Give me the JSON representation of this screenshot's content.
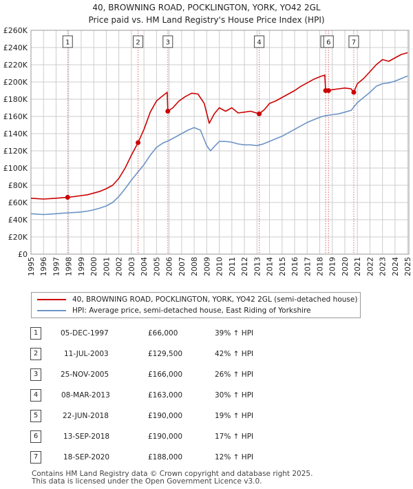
{
  "title_line1": "40, BROWNING ROAD, POCKLINGTON, YORK, YO42 2GL",
  "title_line2": "Price paid vs. HM Land Registry's House Price Index (HPI)",
  "colors": {
    "price_paid": "#cc0000",
    "hpi": "#6b93c7",
    "grid": "#cccccc",
    "marker_line": "#e06060"
  },
  "chart_data": {
    "type": "line",
    "ylim": [
      0,
      260000
    ],
    "xlim": [
      1995,
      2025.1
    ],
    "y_ticks": [
      0,
      20000,
      40000,
      60000,
      80000,
      100000,
      120000,
      140000,
      160000,
      180000,
      200000,
      220000,
      240000,
      260000
    ],
    "y_tick_labels": [
      "£0",
      "£20K",
      "£40K",
      "£60K",
      "£80K",
      "£100K",
      "£120K",
      "£140K",
      "£160K",
      "£180K",
      "£200K",
      "£220K",
      "£240K",
      "£260K"
    ],
    "x_ticks": [
      1995,
      1996,
      1997,
      1998,
      1999,
      2000,
      2001,
      2002,
      2003,
      2004,
      2005,
      2006,
      2007,
      2008,
      2009,
      2010,
      2011,
      2012,
      2013,
      2014,
      2015,
      2016,
      2017,
      2018,
      2019,
      2020,
      2021,
      2022,
      2023,
      2024,
      2025
    ],
    "x_tick_labels": [
      "1995",
      "1996",
      "1997",
      "1998",
      "1999",
      "2000",
      "2001",
      "2002",
      "2003",
      "2004",
      "2005",
      "2006",
      "2007",
      "2008",
      "2009",
      "2010",
      "2011",
      "2012",
      "2013",
      "2014",
      "2015",
      "2016",
      "2017",
      "2018",
      "2019",
      "2020",
      "2021",
      "2022",
      "2023",
      "2024",
      "2025"
    ],
    "grid": true,
    "series": [
      {
        "name": "40, BROWNING ROAD, POCKLINGTON, YORK, YO42 2GL (semi-detached house)",
        "color": "#cc0000",
        "points": [
          [
            1995.0,
            65000
          ],
          [
            1995.5,
            64500
          ],
          [
            1996.0,
            64000
          ],
          [
            1996.5,
            64500
          ],
          [
            1997.0,
            65000
          ],
          [
            1997.5,
            65500
          ],
          [
            1997.92,
            66000
          ],
          [
            1998.5,
            67000
          ],
          [
            1999.0,
            68000
          ],
          [
            1999.5,
            69000
          ],
          [
            2000.0,
            71000
          ],
          [
            2000.5,
            73000
          ],
          [
            2001.0,
            76000
          ],
          [
            2001.5,
            80000
          ],
          [
            2002.0,
            88000
          ],
          [
            2002.5,
            100000
          ],
          [
            2003.0,
            115000
          ],
          [
            2003.53,
            129500
          ],
          [
            2004.0,
            145000
          ],
          [
            2004.5,
            165000
          ],
          [
            2005.0,
            178000
          ],
          [
            2005.5,
            184000
          ],
          [
            2005.85,
            188000
          ],
          [
            2005.9,
            166000
          ],
          [
            2006.3,
            170000
          ],
          [
            2006.8,
            178000
          ],
          [
            2007.3,
            183000
          ],
          [
            2007.8,
            187000
          ],
          [
            2008.3,
            186000
          ],
          [
            2008.8,
            175000
          ],
          [
            2009.2,
            152000
          ],
          [
            2009.6,
            163000
          ],
          [
            2010.0,
            170000
          ],
          [
            2010.5,
            166000
          ],
          [
            2011.0,
            170000
          ],
          [
            2011.5,
            164000
          ],
          [
            2012.0,
            165000
          ],
          [
            2012.5,
            166000
          ],
          [
            2013.18,
            163000
          ],
          [
            2013.6,
            168000
          ],
          [
            2014.0,
            175000
          ],
          [
            2014.5,
            178000
          ],
          [
            2015.0,
            182000
          ],
          [
            2015.5,
            186000
          ],
          [
            2016.0,
            190000
          ],
          [
            2016.5,
            195000
          ],
          [
            2017.0,
            199000
          ],
          [
            2017.5,
            203000
          ],
          [
            2018.0,
            206000
          ],
          [
            2018.4,
            208000
          ],
          [
            2018.47,
            190000
          ],
          [
            2018.7,
            190000
          ],
          [
            2019.0,
            191000
          ],
          [
            2019.5,
            192000
          ],
          [
            2020.0,
            193000
          ],
          [
            2020.5,
            192000
          ],
          [
            2020.71,
            188000
          ],
          [
            2021.0,
            198000
          ],
          [
            2021.5,
            204000
          ],
          [
            2022.0,
            212000
          ],
          [
            2022.5,
            220000
          ],
          [
            2023.0,
            226000
          ],
          [
            2023.5,
            224000
          ],
          [
            2024.0,
            228000
          ],
          [
            2024.5,
            232000
          ],
          [
            2025.0,
            234000
          ]
        ]
      },
      {
        "name": "HPI: Average price, semi-detached house, East Riding of Yorkshire",
        "color": "#6b93c7",
        "points": [
          [
            1995.0,
            47000
          ],
          [
            1995.5,
            46500
          ],
          [
            1996.0,
            46000
          ],
          [
            1996.5,
            46500
          ],
          [
            1997.0,
            47000
          ],
          [
            1997.5,
            47500
          ],
          [
            1998.0,
            48000
          ],
          [
            1998.5,
            48500
          ],
          [
            1999.0,
            49000
          ],
          [
            1999.5,
            50000
          ],
          [
            2000.0,
            51500
          ],
          [
            2000.5,
            53500
          ],
          [
            2001.0,
            56000
          ],
          [
            2001.5,
            60000
          ],
          [
            2002.0,
            67000
          ],
          [
            2002.5,
            76000
          ],
          [
            2003.0,
            86000
          ],
          [
            2003.5,
            95000
          ],
          [
            2004.0,
            104000
          ],
          [
            2004.5,
            115000
          ],
          [
            2005.0,
            124000
          ],
          [
            2005.5,
            129000
          ],
          [
            2006.0,
            132000
          ],
          [
            2006.5,
            136000
          ],
          [
            2007.0,
            140000
          ],
          [
            2007.5,
            144000
          ],
          [
            2008.0,
            147000
          ],
          [
            2008.5,
            144000
          ],
          [
            2009.0,
            126000
          ],
          [
            2009.3,
            120000
          ],
          [
            2009.6,
            125000
          ],
          [
            2010.0,
            131000
          ],
          [
            2010.5,
            131000
          ],
          [
            2011.0,
            130000
          ],
          [
            2011.5,
            128000
          ],
          [
            2012.0,
            127000
          ],
          [
            2012.5,
            127000
          ],
          [
            2013.0,
            126000
          ],
          [
            2013.5,
            128000
          ],
          [
            2014.0,
            131000
          ],
          [
            2014.5,
            134000
          ],
          [
            2015.0,
            137000
          ],
          [
            2015.5,
            141000
          ],
          [
            2016.0,
            145000
          ],
          [
            2016.5,
            149000
          ],
          [
            2017.0,
            153000
          ],
          [
            2017.5,
            156000
          ],
          [
            2018.0,
            159000
          ],
          [
            2018.5,
            161000
          ],
          [
            2019.0,
            162000
          ],
          [
            2019.5,
            163000
          ],
          [
            2020.0,
            165000
          ],
          [
            2020.5,
            167000
          ],
          [
            2021.0,
            176000
          ],
          [
            2021.5,
            182000
          ],
          [
            2022.0,
            188000
          ],
          [
            2022.5,
            195000
          ],
          [
            2023.0,
            198000
          ],
          [
            2023.5,
            199000
          ],
          [
            2024.0,
            201000
          ],
          [
            2024.5,
            204000
          ],
          [
            2025.0,
            207000
          ]
        ]
      }
    ],
    "markers": [
      {
        "label": "1",
        "x": 1997.92,
        "y": 66000
      },
      {
        "label": "2",
        "x": 2003.53,
        "y": 129500
      },
      {
        "label": "3",
        "x": 2005.9,
        "y": 166000
      },
      {
        "label": "4",
        "x": 2013.18,
        "y": 163000
      },
      {
        "label": "5",
        "x": 2018.47,
        "y": 190000
      },
      {
        "label": "6",
        "x": 2018.7,
        "y": 190000
      },
      {
        "label": "7",
        "x": 2020.71,
        "y": 188000
      }
    ]
  },
  "legend": {
    "price_paid_label": "40, BROWNING ROAD, POCKLINGTON, YORK, YO42 2GL (semi-detached house)",
    "hpi_label": "HPI: Average price, semi-detached house, East Riding of Yorkshire"
  },
  "transactions": [
    {
      "num": "1",
      "date": "05-DEC-1997",
      "price": "£66,000",
      "hpi": "39% ↑ HPI"
    },
    {
      "num": "2",
      "date": "11-JUL-2003",
      "price": "£129,500",
      "hpi": "42% ↑ HPI"
    },
    {
      "num": "3",
      "date": "25-NOV-2005",
      "price": "£166,000",
      "hpi": "26% ↑ HPI"
    },
    {
      "num": "4",
      "date": "08-MAR-2013",
      "price": "£163,000",
      "hpi": "30% ↑ HPI"
    },
    {
      "num": "5",
      "date": "22-JUN-2018",
      "price": "£190,000",
      "hpi": "19% ↑ HPI"
    },
    {
      "num": "6",
      "date": "13-SEP-2018",
      "price": "£190,000",
      "hpi": "17% ↑ HPI"
    },
    {
      "num": "7",
      "date": "18-SEP-2020",
      "price": "£188,000",
      "hpi": "12% ↑ HPI"
    }
  ],
  "footer_line1": "Contains HM Land Registry data © Crown copyright and database right 2025.",
  "footer_line2": "This data is licensed under the Open Government Licence v3.0."
}
